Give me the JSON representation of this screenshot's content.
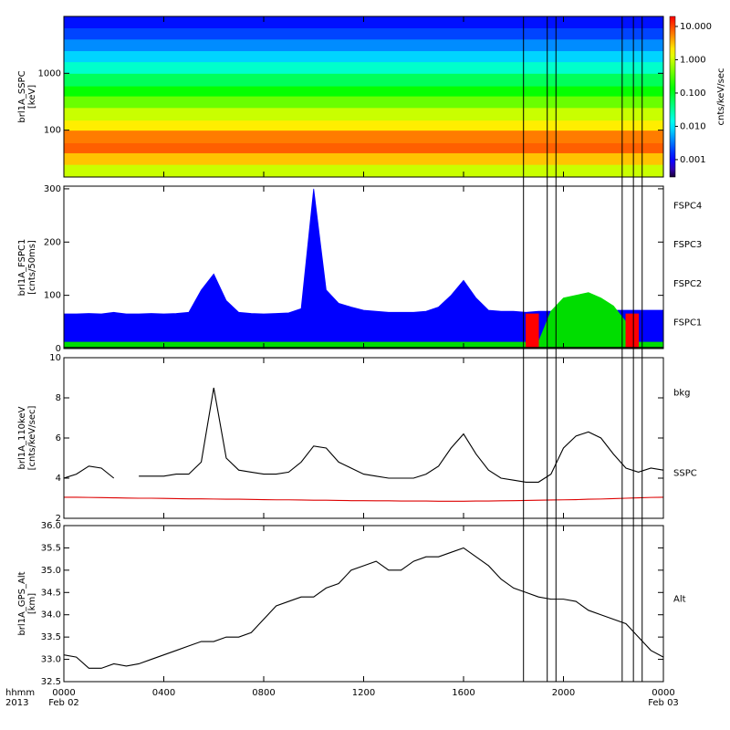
{
  "chart_data": [
    {
      "type": "heatmap",
      "ylabel": [
        "brl1A_SSPC",
        "[keV]"
      ],
      "yscale": "log",
      "ylim": [
        15,
        10000
      ],
      "yticks": [
        100,
        1000
      ],
      "xlim": [
        0,
        24
      ],
      "y_edges": [
        15,
        25,
        40,
        60,
        100,
        150,
        250,
        400,
        600,
        1000,
        1600,
        2500,
        4000,
        6300,
        10000
      ],
      "values": [
        1,
        3,
        8,
        6,
        2,
        1,
        0.4,
        0.15,
        0.06,
        0.02,
        0.008,
        0.004,
        0.002,
        0.0012
      ],
      "zscale": "log",
      "zlim": [
        0.0003,
        20
      ],
      "zlabel": "cnts/keV/sec",
      "zticks": [
        0.001,
        {
          "value": 0.01,
          "label": "0.010"
        },
        {
          "value": 0.1,
          "label": "0.100"
        },
        {
          "value": 1,
          "label": "1.000"
        },
        {
          "value": 10,
          "label": "10.000"
        }
      ]
    },
    {
      "type": "area",
      "ylabel": [
        "brl1A_FSPC1",
        "[cnts/50ms]"
      ],
      "ylim": [
        0,
        305
      ],
      "yticks": [
        0,
        100,
        200,
        300
      ],
      "xlim": [
        0,
        24
      ],
      "x": [
        0,
        0.5,
        1,
        1.5,
        2,
        2.5,
        3,
        3.5,
        4,
        4.5,
        5,
        5.5,
        6,
        6.5,
        7,
        7.5,
        8,
        8.5,
        9,
        9.5,
        10,
        10.5,
        11,
        11.5,
        12,
        12.5,
        13,
        13.5,
        14,
        14.5,
        15,
        15.5,
        16,
        16.5,
        17,
        17.5,
        18,
        18.5,
        19,
        19.5,
        20,
        20.5,
        21,
        21.5,
        22,
        22.5,
        23,
        23.5,
        24
      ],
      "series": [
        {
          "name": "FSPC4",
          "color": "#000000",
          "style": "line",
          "values": [
            2,
            2,
            2,
            2,
            2,
            2,
            2,
            2,
            2,
            2,
            2,
            2,
            2,
            2,
            2,
            2,
            2,
            2,
            2,
            2,
            2,
            2,
            2,
            2,
            2,
            2,
            2,
            2,
            2,
            2,
            2,
            2,
            2,
            2,
            2,
            2,
            2,
            2,
            2,
            2,
            2,
            2,
            2,
            2,
            2,
            2,
            2,
            2,
            2
          ]
        },
        {
          "name": "FSPC3",
          "color": "#ff0000",
          "style": "area",
          "values": [
            null,
            null,
            null,
            null,
            null,
            null,
            null,
            null,
            null,
            null,
            null,
            null,
            null,
            null,
            null,
            null,
            null,
            null,
            null,
            null,
            null,
            null,
            null,
            null,
            null,
            null,
            null,
            null,
            null,
            null,
            null,
            null,
            null,
            null,
            null,
            null,
            null,
            65,
            65,
            null,
            null,
            null,
            null,
            null,
            null,
            65,
            65,
            null,
            null
          ]
        },
        {
          "name": "FSPC2",
          "color": "#00dd00",
          "style": "area",
          "values": [
            12,
            12,
            12,
            12,
            12,
            12,
            12,
            12,
            12,
            12,
            12,
            12,
            12,
            12,
            12,
            12,
            12,
            12,
            12,
            12,
            12,
            12,
            12,
            12,
            12,
            12,
            12,
            12,
            12,
            12,
            12,
            12,
            12,
            12,
            12,
            12,
            12,
            12,
            12,
            70,
            95,
            100,
            105,
            95,
            80,
            50,
            12,
            12,
            12
          ]
        },
        {
          "name": "FSPC1",
          "color": "#0000ff",
          "style": "area",
          "values": [
            65,
            65,
            66,
            65,
            68,
            65,
            65,
            66,
            65,
            66,
            68,
            110,
            140,
            90,
            68,
            66,
            65,
            66,
            67,
            75,
            300,
            110,
            85,
            78,
            72,
            70,
            68,
            68,
            68,
            70,
            78,
            100,
            128,
            95,
            72,
            70,
            70,
            68,
            70,
            70,
            72,
            72,
            70,
            72,
            72,
            72,
            72,
            72,
            72
          ]
        }
      ]
    },
    {
      "type": "line",
      "ylabel": [
        "brl1A_110keV",
        "[cnts/keV/sec]"
      ],
      "ylim": [
        2,
        10
      ],
      "yticks": [
        2,
        4,
        6,
        8,
        10
      ],
      "xlim": [
        0,
        24
      ],
      "x": [
        0,
        0.5,
        1,
        1.5,
        2,
        2.5,
        3,
        3.5,
        4,
        4.5,
        5,
        5.5,
        6,
        6.5,
        7,
        7.5,
        8,
        8.5,
        9,
        9.5,
        10,
        10.5,
        11,
        11.5,
        12,
        12.5,
        13,
        13.5,
        14,
        14.5,
        15,
        15.5,
        16,
        16.5,
        17,
        17.5,
        18,
        18.5,
        19,
        19.5,
        20,
        20.5,
        21,
        21.5,
        22,
        22.5,
        23,
        23.5,
        24
      ],
      "series": [
        {
          "name": "bkg",
          "color": "#dd0000",
          "values": [
            3.05,
            3.05,
            3.04,
            3.03,
            3.02,
            3.01,
            3.0,
            3.0,
            2.99,
            2.98,
            2.97,
            2.97,
            2.96,
            2.95,
            2.95,
            2.94,
            2.93,
            2.92,
            2.92,
            2.91,
            2.9,
            2.9,
            2.89,
            2.88,
            2.88,
            2.87,
            2.87,
            2.86,
            2.86,
            2.86,
            2.85,
            2.85,
            2.85,
            2.86,
            2.86,
            2.87,
            2.88,
            2.89,
            2.9,
            2.91,
            2.92,
            2.93,
            2.95,
            2.96,
            2.98,
            3.0,
            3.02,
            3.04,
            3.05
          ]
        },
        {
          "name": "SSPC",
          "color": "#000000",
          "values": [
            4,
            4.2,
            4.6,
            4.5,
            4,
            null,
            4.1,
            4.1,
            4.1,
            4.2,
            4.2,
            4.8,
            8.5,
            5,
            4.4,
            4.3,
            4.2,
            4.2,
            4.3,
            4.8,
            5.6,
            5.5,
            4.8,
            4.5,
            4.2,
            4.1,
            4.0,
            4.0,
            4.0,
            4.2,
            4.6,
            5.5,
            6.2,
            5.2,
            4.4,
            4.0,
            3.9,
            3.8,
            3.8,
            4.2,
            5.5,
            6.1,
            6.3,
            6.0,
            5.2,
            4.5,
            4.3,
            4.5,
            4.4
          ]
        }
      ]
    },
    {
      "type": "line",
      "ylabel": [
        "brl1A_GPS_Alt",
        "[km]"
      ],
      "ylim": [
        32.5,
        36.0
      ],
      "xlim": [
        0,
        24
      ],
      "yticks": [
        32.5,
        {
          "value": 33,
          "label": "33.0"
        },
        33.5,
        {
          "value": 34,
          "label": "34.0"
        },
        34.5,
        {
          "value": 35,
          "label": "35.0"
        },
        35.5,
        {
          "value": 36,
          "label": "36.0"
        }
      ],
      "xticks": [
        {
          "value": 0,
          "label": "0000"
        },
        {
          "value": 4,
          "label": "0400"
        },
        {
          "value": 8,
          "label": "0800"
        },
        {
          "value": 12,
          "label": "1200"
        },
        {
          "value": 16,
          "label": "1600"
        },
        {
          "value": 20,
          "label": "2000"
        },
        {
          "value": 24,
          "label": "0000"
        }
      ],
      "x_header": [
        "hhmm",
        "2013"
      ],
      "date_labels": [
        "Feb 02",
        "Feb 03"
      ],
      "event_lines": [
        18.4,
        19.35,
        19.7,
        22.35,
        22.8,
        23.15
      ],
      "x": [
        0,
        0.5,
        1,
        1.5,
        2,
        2.5,
        3,
        3.5,
        4,
        4.5,
        5,
        5.5,
        6,
        6.5,
        7,
        7.5,
        8,
        8.5,
        9,
        9.5,
        10,
        10.5,
        11,
        11.5,
        12,
        12.5,
        13,
        13.5,
        14,
        14.5,
        15,
        15.5,
        16,
        16.5,
        17,
        17.5,
        18,
        18.5,
        19,
        19.5,
        20,
        20.5,
        21,
        21.5,
        22,
        22.5,
        23,
        23.5,
        24
      ],
      "series": [
        {
          "name": "Alt",
          "color": "#000000",
          "values": [
            33.1,
            33.05,
            32.8,
            32.8,
            32.9,
            32.85,
            32.9,
            33,
            33.1,
            33.2,
            33.3,
            33.4,
            33.4,
            33.5,
            33.5,
            33.6,
            33.9,
            34.2,
            34.3,
            34.4,
            34.4,
            34.6,
            34.7,
            35.0,
            35.1,
            35.2,
            35.0,
            35.0,
            35.2,
            35.3,
            35.3,
            35.4,
            35.5,
            35.3,
            35.1,
            34.8,
            34.6,
            34.5,
            34.4,
            34.35,
            34.35,
            34.3,
            34.1,
            34.0,
            33.9,
            33.8,
            33.5,
            33.2,
            33.05
          ]
        }
      ]
    }
  ]
}
